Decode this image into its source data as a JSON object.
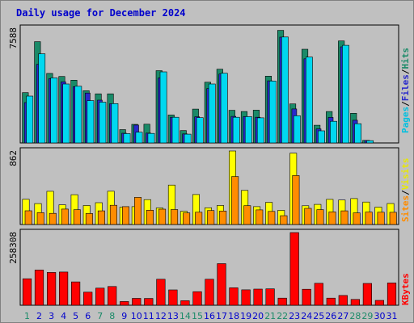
{
  "chart_data": {
    "type": "bar",
    "title": "Daily usage for December 2024",
    "x": [
      "1",
      "2",
      "3",
      "4",
      "5",
      "6",
      "7",
      "8",
      "9",
      "10",
      "11",
      "12",
      "13",
      "14",
      "15",
      "16",
      "17",
      "18",
      "19",
      "20",
      "21",
      "22",
      "23",
      "24",
      "25",
      "26",
      "27",
      "28",
      "29",
      "30",
      "31"
    ],
    "weekend_days": [
      "1",
      "7",
      "8",
      "14",
      "15",
      "21",
      "22",
      "28",
      "29"
    ],
    "panels": [
      {
        "id": "top",
        "ymax_label": "7588",
        "ymax": 7588,
        "series": [
          {
            "name": "Hits",
            "color": "#1a8a68",
            "values": [
              3330,
              6700,
              4600,
              4400,
              4150,
              3460,
              3250,
              3250,
              880,
              1230,
              1240,
              4780,
              1850,
              820,
              2240,
              4020,
              4880,
              2160,
              2080,
              2170,
              4420,
              7450,
              2580,
              6200,
              1170,
              2080,
              6750,
              1960,
              170,
              0,
              0
            ]
          },
          {
            "name": "Files",
            "color": "#2828cc",
            "values": [
              2670,
              5200,
              4250,
              4040,
              3720,
              3300,
              2830,
              2590,
              640,
              1180,
              650,
              4300,
              1700,
              600,
              1730,
              3600,
              4560,
              1760,
              1740,
              1700,
              4110,
              7000,
              2250,
              5570,
              930,
              1690,
              6360,
              1500,
              170,
              0,
              0
            ]
          },
          {
            "name": "Pages",
            "color": "#00d8f0",
            "values": [
              3100,
              5900,
              4300,
              3900,
              3750,
              2800,
              2700,
              2600,
              620,
              710,
              630,
              4700,
              1700,
              580,
              1670,
              3900,
              4610,
              1700,
              1740,
              1660,
              4100,
              7010,
              1800,
              5680,
              800,
              1430,
              6460,
              1270,
              150,
              0,
              0
            ]
          }
        ],
        "colors_by_series": true
      },
      {
        "id": "mid",
        "ymax_label": "862",
        "ymax": 862,
        "series": [
          {
            "name": "Visits",
            "color": "#ffff00",
            "values": [
              296,
              245,
              389,
              231,
              350,
              223,
              256,
              390,
              204,
              209,
              292,
              194,
              462,
              154,
              351,
              196,
              223,
              862,
              400,
              209,
              260,
              166,
              836,
              220,
              236,
              295,
              287,
              304,
              263,
              204,
              246
            ]
          },
          {
            "name": "Sites",
            "color": "#ff8c00",
            "values": [
              161,
              139,
              131,
              181,
              173,
              129,
              160,
              225,
              209,
              318,
              168,
              180,
              175,
              136,
              144,
              164,
              158,
              563,
              221,
              171,
              153,
              103,
              574,
              189,
              174,
              148,
              160,
              136,
              146,
              144,
              143
            ]
          }
        ]
      },
      {
        "id": "bottom",
        "ymax_label": "258308",
        "ymax": 258308,
        "series": [
          {
            "name": "KBytes",
            "color": "#ff0000",
            "values": [
              94100,
              125100,
              116500,
              118000,
              83000,
              46600,
              60900,
              66700,
              13200,
              24400,
              24000,
              92500,
              54500,
              16100,
              48100,
              92400,
              147800,
              62100,
              54800,
              57500,
              58400,
              25300,
              258300,
              56800,
              78200,
              25200,
              34700,
              20700,
              77400,
              17300,
              79100
            ]
          }
        ]
      }
    ],
    "side_labels": {
      "top": [
        {
          "text": "Pages",
          "color": "#00c0e0"
        },
        {
          "text": "Files",
          "color": "#2828cc"
        },
        {
          "text": "Hits",
          "color": "#1a8a68"
        }
      ],
      "mid": [
        {
          "text": "Sites",
          "color": "#ff8c00"
        },
        {
          "text": "Visits",
          "color": "#e8e800"
        }
      ],
      "bottom": [
        {
          "text": "KBytes",
          "color": "#ff0000"
        }
      ]
    },
    "separator": "/",
    "colors": {
      "background": "#c0c0c0",
      "weekday_label": "#0000cc",
      "weekend_label": "#1a8a68"
    }
  }
}
